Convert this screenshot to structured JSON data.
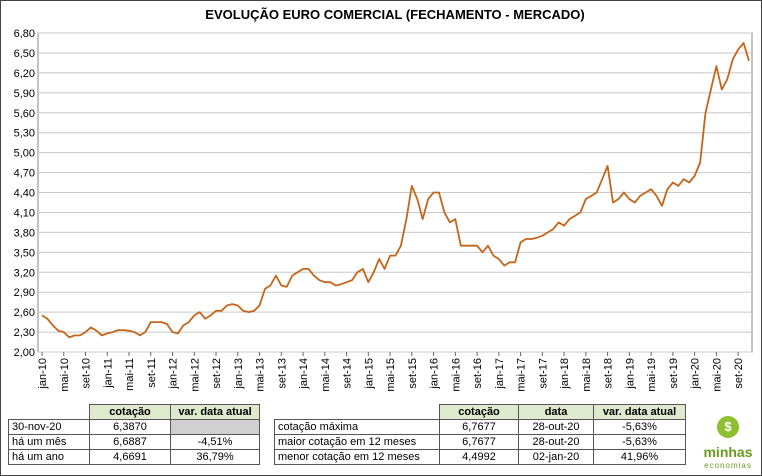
{
  "chart_data": {
    "type": "line",
    "title": "EVOLUÇÃO EURO COMERCIAL (FECHAMENTO - MERCADO)",
    "categories": [
      "jan-10",
      null,
      null,
      null,
      "mai-10",
      null,
      null,
      null,
      "set-10",
      null,
      null,
      null,
      "jan-11",
      null,
      null,
      null,
      "mai-11",
      null,
      null,
      null,
      "set-11",
      null,
      null,
      null,
      "jan-12",
      null,
      null,
      null,
      "mai-12",
      null,
      null,
      null,
      "set-12",
      null,
      null,
      null,
      "jan-13",
      null,
      null,
      null,
      "mai-13",
      null,
      null,
      null,
      "set-13",
      null,
      null,
      null,
      "jan-14",
      null,
      null,
      null,
      "mai-14",
      null,
      null,
      null,
      "set-14",
      null,
      null,
      null,
      "jan-15",
      null,
      null,
      null,
      "mai-15",
      null,
      null,
      null,
      "set-15",
      null,
      null,
      null,
      "jan-16",
      null,
      null,
      null,
      "mai-16",
      null,
      null,
      null,
      "set-16",
      null,
      null,
      null,
      "jan-17",
      null,
      null,
      null,
      "mai-17",
      null,
      null,
      null,
      "set-17",
      null,
      null,
      null,
      "jan-18",
      null,
      null,
      null,
      "mai-18",
      null,
      null,
      null,
      "set-18",
      null,
      null,
      null,
      "jan-19",
      null,
      null,
      null,
      "mai-19",
      null,
      null,
      null,
      "set-19",
      null,
      null,
      null,
      "jan-20",
      null,
      null,
      null,
      "mai-20",
      null,
      null,
      null,
      "set-20",
      null,
      null
    ],
    "values": [
      2.55,
      2.5,
      2.4,
      2.32,
      2.3,
      2.22,
      2.25,
      2.25,
      2.3,
      2.37,
      2.32,
      2.25,
      2.28,
      2.3,
      2.33,
      2.33,
      2.32,
      2.3,
      2.25,
      2.3,
      2.45,
      2.45,
      2.45,
      2.42,
      2.3,
      2.28,
      2.4,
      2.45,
      2.55,
      2.6,
      2.5,
      2.55,
      2.62,
      2.62,
      2.7,
      2.72,
      2.7,
      2.62,
      2.6,
      2.62,
      2.7,
      2.95,
      3.0,
      3.15,
      3.0,
      2.98,
      3.15,
      3.2,
      3.25,
      3.25,
      3.15,
      3.08,
      3.05,
      3.05,
      3.0,
      3.02,
      3.05,
      3.08,
      3.2,
      3.25,
      3.05,
      3.2,
      3.4,
      3.25,
      3.45,
      3.45,
      3.6,
      4.0,
      4.5,
      4.3,
      4.0,
      4.3,
      4.4,
      4.4,
      4.1,
      3.95,
      4.0,
      3.6,
      3.6,
      3.6,
      3.6,
      3.5,
      3.6,
      3.45,
      3.4,
      3.3,
      3.35,
      3.35,
      3.65,
      3.7,
      3.7,
      3.72,
      3.75,
      3.8,
      3.85,
      3.95,
      3.9,
      4.0,
      4.05,
      4.1,
      4.3,
      4.35,
      4.4,
      4.6,
      4.8,
      4.25,
      4.3,
      4.4,
      4.3,
      4.25,
      4.35,
      4.4,
      4.45,
      4.35,
      4.2,
      4.45,
      4.55,
      4.5,
      4.6,
      4.55,
      4.65,
      4.85,
      5.6,
      5.95,
      6.3,
      5.95,
      6.1,
      6.4,
      6.55,
      6.65,
      6.38
    ],
    "color": "#c5651b",
    "ylim": [
      2.0,
      6.8
    ],
    "yticks": [
      {
        "value": 2.0,
        "label": "2,00"
      },
      {
        "value": 2.3,
        "label": "2,30"
      },
      {
        "value": 2.6,
        "label": "2,60"
      },
      {
        "value": 2.9,
        "label": "2,90"
      },
      {
        "value": 3.2,
        "label": "3,20"
      },
      {
        "value": 3.5,
        "label": "3,50"
      },
      {
        "value": 3.8,
        "label": "3,80"
      },
      {
        "value": 4.1,
        "label": "4,10"
      },
      {
        "value": 4.4,
        "label": "4,40"
      },
      {
        "value": 4.7,
        "label": "4,70"
      },
      {
        "value": 5.0,
        "label": "5,00"
      },
      {
        "value": 5.3,
        "label": "5,30"
      },
      {
        "value": 5.6,
        "label": "5,60"
      },
      {
        "value": 5.9,
        "label": "5,90"
      },
      {
        "value": 6.2,
        "label": "6,20"
      },
      {
        "value": 6.5,
        "label": "6,50"
      },
      {
        "value": 6.8,
        "label": "6,80"
      }
    ],
    "grid": true
  },
  "tables": [
    {
      "header": [
        null,
        "cotação",
        "var. data atual"
      ],
      "rows": [
        [
          "30-nov-20",
          "6,3870",
          null
        ],
        [
          "há um mês",
          "6,6887",
          "-4,51%"
        ],
        [
          "há um ano",
          "4,6691",
          "36,79%"
        ]
      ]
    },
    {
      "header": [
        null,
        "cotação",
        "data",
        "var. data atual"
      ],
      "rows": [
        [
          "cotação máxima",
          "6,7677",
          "28-out-20",
          "-5,63%"
        ],
        [
          "maior cotação em 12 meses",
          "6,7677",
          "28-out-20",
          "-5,63%"
        ],
        [
          "menor cotação em 12 meses",
          "4,4992",
          "02-jan-20",
          "41,96%"
        ]
      ]
    }
  ],
  "logo": {
    "name": "minhas",
    "tagline": "economias"
  }
}
